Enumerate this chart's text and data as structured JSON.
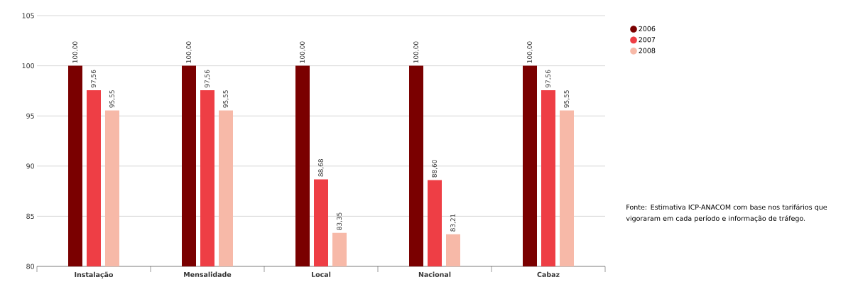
{
  "chart_data": {
    "type": "bar",
    "categories": [
      "Instalação",
      "Mensalidade",
      "Local",
      "Nacional",
      "Cabaz"
    ],
    "series": [
      {
        "name": "2006",
        "color": "#7a0000",
        "values": [
          100,
          100,
          100,
          100,
          100
        ],
        "value_labels": [
          "100,00",
          "100,00",
          "100,00",
          "100,00",
          "100,00"
        ]
      },
      {
        "name": "2007",
        "color": "#ee3e45",
        "values": [
          97.56,
          97.56,
          88.68,
          88.6,
          97.56
        ],
        "value_labels": [
          "97,56",
          "97,56",
          "88,68",
          "88,60",
          "97,56"
        ]
      },
      {
        "name": "2008",
        "color": "#f7b9a8",
        "values": [
          95.55,
          95.55,
          83.35,
          83.21,
          95.55
        ],
        "value_labels": [
          "95,55",
          "95,55",
          "83,35",
          "83,21",
          "95,55"
        ]
      }
    ],
    "ylim": [
      80,
      105
    ],
    "yticks": [
      80,
      85,
      90,
      95,
      100,
      105
    ],
    "grid": "y",
    "legend": "top right",
    "annotations": [
      "Fonte: Estimativa ICP-ANACOM com base nos tarifários que vigoraram em cada período e informação de tráfego."
    ]
  }
}
